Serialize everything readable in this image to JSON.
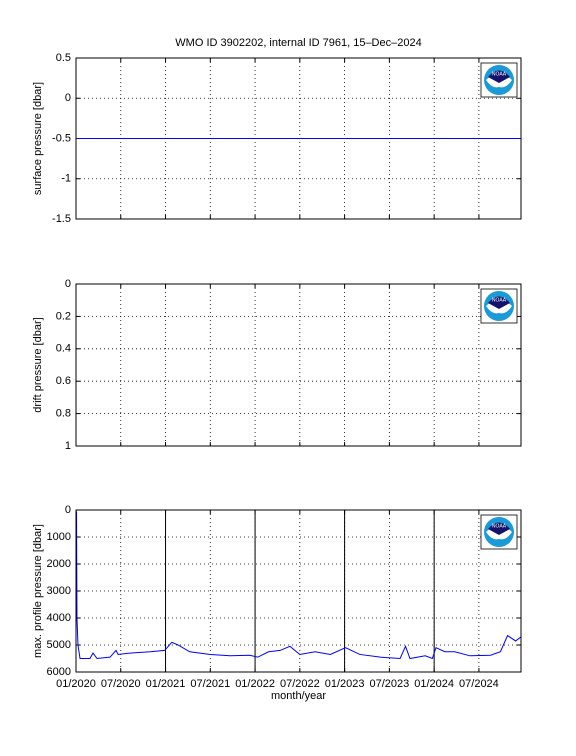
{
  "logo_text": "NOAA",
  "chart_data": [
    {
      "type": "line",
      "title": "WMO ID 3902202, internal ID 7961, 15–Dec–2024",
      "ylabel": "surface pressure [dbar]",
      "xlim": [
        2020,
        2024.97
      ],
      "xticks": [
        2020,
        2020.5,
        2021,
        2021.5,
        2022,
        2022.5,
        2023,
        2023.5,
        2024,
        2024.5
      ],
      "xtick_labels": false,
      "ylim": [
        -1.5,
        0.5
      ],
      "yticks": [
        0.5,
        0,
        -0.5,
        -1,
        -1.5
      ],
      "y_reversed": false,
      "grid": true,
      "series": [
        {
          "color": "#0000ff",
          "x": [
            2020,
            2024.97
          ],
          "values": [
            -0.5,
            -0.5
          ]
        }
      ]
    },
    {
      "type": "line",
      "ylabel": "drift pressure [dbar]",
      "xlim": [
        2020,
        2024.97
      ],
      "xticks": [
        2020,
        2020.5,
        2021,
        2021.5,
        2022,
        2022.5,
        2023,
        2023.5,
        2024,
        2024.5
      ],
      "xtick_labels": false,
      "ylim": [
        0,
        1
      ],
      "yticks": [
        0,
        0.2,
        0.4,
        0.6,
        0.8,
        1
      ],
      "y_reversed": true,
      "grid": true,
      "series": []
    },
    {
      "type": "line",
      "ylabel": "max. profile pressure [dbar]",
      "xlabel": "month/year",
      "xlim": [
        2020,
        2024.97
      ],
      "xticks": [
        {
          "value": 2020,
          "label": "01/2020"
        },
        {
          "value": 2020.5,
          "label": "07/2020"
        },
        {
          "value": 2021,
          "label": "01/2021"
        },
        {
          "value": 2021.5,
          "label": "07/2021"
        },
        {
          "value": 2022,
          "label": "01/2022"
        },
        {
          "value": 2022.5,
          "label": "07/2022"
        },
        {
          "value": 2023,
          "label": "01/2023"
        },
        {
          "value": 2023.5,
          "label": "07/2023"
        },
        {
          "value": 2024,
          "label": "01/2024"
        },
        {
          "value": 2024.5,
          "label": "07/2024"
        }
      ],
      "xtick_labels": true,
      "ylim": [
        0,
        6000
      ],
      "yticks": [
        0,
        1000,
        2000,
        3000,
        4000,
        5000,
        6000
      ],
      "y_reversed": true,
      "grid": true,
      "year_lines": [
        2021,
        2022,
        2023,
        2024
      ],
      "series": [
        {
          "color": "#0000ff",
          "x": [
            2020.006,
            2020.011,
            2020.022,
            2020.045,
            2020.156,
            2020.19,
            2020.235,
            2020.38,
            2020.447,
            2020.47,
            2020.6,
            2020.83,
            2020.99,
            2021.07,
            2021.14,
            2021.27,
            2021.5,
            2021.72,
            2021.94,
            2022.03,
            2022.15,
            2022.28,
            2022.39,
            2022.5,
            2022.67,
            2022.84,
            2023.01,
            2023.17,
            2023.4,
            2023.62,
            2023.68,
            2023.73,
            2023.9,
            2023.98,
            2024.02,
            2024.12,
            2024.23,
            2024.4,
            2024.63,
            2024.74,
            2024.82,
            2024.91,
            2024.97
          ],
          "values": [
            50,
            4000,
            5000,
            5500,
            5500,
            5300,
            5500,
            5450,
            5200,
            5350,
            5300,
            5250,
            5200,
            4900,
            5000,
            5250,
            5350,
            5400,
            5380,
            5450,
            5250,
            5200,
            5050,
            5350,
            5250,
            5350,
            5100,
            5350,
            5450,
            5500,
            5050,
            5500,
            5400,
            5500,
            5100,
            5250,
            5250,
            5400,
            5380,
            5250,
            4650,
            4850,
            4700
          ]
        }
      ]
    }
  ]
}
